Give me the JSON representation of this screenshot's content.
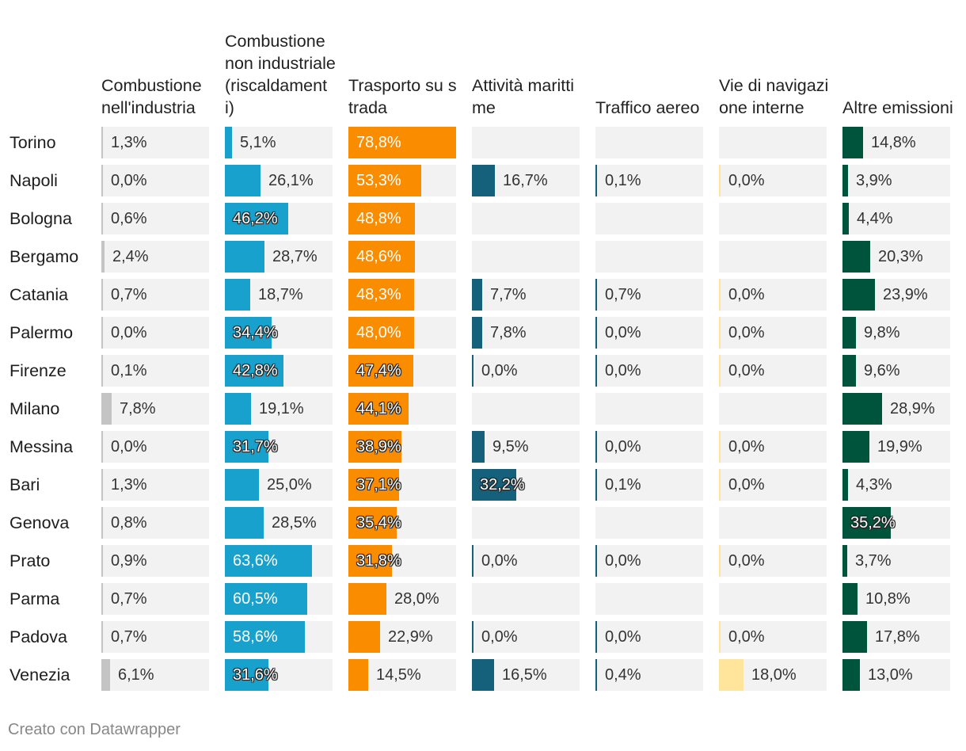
{
  "chart_data": {
    "type": "table",
    "title": "",
    "xlabel": "",
    "ylabel": "",
    "xlim": [
      0,
      78.8
    ],
    "columns": [
      {
        "key": "c1",
        "header": "Combustione nell'industria",
        "color": "#c4c4c4"
      },
      {
        "key": "c2",
        "header": "Combustione non industriale (riscaldamenti)",
        "color": "#18a1cd"
      },
      {
        "key": "c3",
        "header": "Trasporto su strada",
        "color": "#fa8c00"
      },
      {
        "key": "c4",
        "header": "Attività marittime",
        "color": "#15607a"
      },
      {
        "key": "c5",
        "header": "Traffico aereo",
        "color": "#15607a"
      },
      {
        "key": "c6",
        "header": "Vie di navigazione interne",
        "color": "#ffe59c"
      },
      {
        "key": "c7",
        "header": "Altre emissioni",
        "color": "#00543c"
      }
    ],
    "rows": [
      {
        "city": "Torino",
        "values": [
          1.3,
          5.1,
          78.8,
          null,
          null,
          null,
          14.8
        ]
      },
      {
        "city": "Napoli",
        "values": [
          0.0,
          26.1,
          53.3,
          16.7,
          0.1,
          0.0,
          3.9
        ]
      },
      {
        "city": "Bologna",
        "values": [
          0.6,
          46.2,
          48.8,
          null,
          null,
          null,
          4.4
        ]
      },
      {
        "city": "Bergamo",
        "values": [
          2.4,
          28.7,
          48.6,
          null,
          null,
          null,
          20.3
        ]
      },
      {
        "city": "Catania",
        "values": [
          0.7,
          18.7,
          48.3,
          7.7,
          0.7,
          0.0,
          23.9
        ]
      },
      {
        "city": "Palermo",
        "values": [
          0.0,
          34.4,
          48.0,
          7.8,
          0.0,
          0.0,
          9.8
        ]
      },
      {
        "city": "Firenze",
        "values": [
          0.1,
          42.8,
          47.4,
          0.0,
          0.0,
          0.0,
          9.6
        ]
      },
      {
        "city": "Milano",
        "values": [
          7.8,
          19.1,
          44.1,
          null,
          null,
          null,
          28.9
        ]
      },
      {
        "city": "Messina",
        "values": [
          0.0,
          31.7,
          38.9,
          9.5,
          0.0,
          0.0,
          19.9
        ]
      },
      {
        "city": "Bari",
        "values": [
          1.3,
          25.0,
          37.1,
          32.2,
          0.1,
          0.0,
          4.3
        ]
      },
      {
        "city": "Genova",
        "values": [
          0.8,
          28.5,
          35.4,
          null,
          null,
          null,
          35.2
        ]
      },
      {
        "city": "Prato",
        "values": [
          0.9,
          63.6,
          31.8,
          0.0,
          0.0,
          0.0,
          3.7
        ]
      },
      {
        "city": "Parma",
        "values": [
          0.7,
          60.5,
          28.0,
          null,
          null,
          null,
          10.8
        ]
      },
      {
        "city": "Padova",
        "values": [
          0.7,
          58.6,
          22.9,
          0.0,
          0.0,
          0.0,
          17.8
        ]
      },
      {
        "city": "Venezia",
        "values": [
          6.1,
          31.6,
          14.5,
          16.5,
          0.4,
          18.0,
          13.0
        ]
      }
    ],
    "labels": [
      [
        "1,3%",
        "5,1%",
        "78,8%",
        "",
        "",
        "",
        "14,8%"
      ],
      [
        "0,0%",
        "26,1%",
        "53,3%",
        "16,7%",
        "0,1%",
        "0,0%",
        "3,9%"
      ],
      [
        "0,6%",
        "46,2%",
        "48,8%",
        "",
        "",
        "",
        "4,4%"
      ],
      [
        "2,4%",
        "28,7%",
        "48,6%",
        "",
        "",
        "",
        "20,3%"
      ],
      [
        "0,7%",
        "18,7%",
        "48,3%",
        "7,7%",
        "0,7%",
        "0,0%",
        "23,9%"
      ],
      [
        "0,0%",
        "34,4%",
        "48,0%",
        "7,8%",
        "0,0%",
        "0,0%",
        "9,8%"
      ],
      [
        "0,1%",
        "42,8%",
        "47,4%",
        "0,0%",
        "0,0%",
        "0,0%",
        "9,6%"
      ],
      [
        "7,8%",
        "19,1%",
        "44,1%",
        "",
        "",
        "",
        "28,9%"
      ],
      [
        "0,0%",
        "31,7%",
        "38,9%",
        "9,5%",
        "0,0%",
        "0,0%",
        "19,9%"
      ],
      [
        "1,3%",
        "25,0%",
        "37,1%",
        "32,2%",
        "0,1%",
        "0,0%",
        "4,3%"
      ],
      [
        "0,8%",
        "28,5%",
        "35,4%",
        "",
        "",
        "",
        "35,2%"
      ],
      [
        "0,9%",
        "63,6%",
        "31,8%",
        "0,0%",
        "0,0%",
        "0,0%",
        "3,7%"
      ],
      [
        "0,7%",
        "60,5%",
        "28,0%",
        "",
        "",
        "",
        "10,8%"
      ],
      [
        "0,7%",
        "58,6%",
        "22,9%",
        "0,0%",
        "0,0%",
        "0,0%",
        "17,8%"
      ],
      [
        "6,1%",
        "31,6%",
        "14,5%",
        "16,5%",
        "0,4%",
        "18,0%",
        "13,0%"
      ]
    ],
    "label_style": [
      [
        "out",
        "out",
        "white",
        "",
        "",
        "",
        "out"
      ],
      [
        "out",
        "out",
        "white",
        "out",
        "out",
        "out",
        "out"
      ],
      [
        "out",
        "stroke",
        "white",
        "",
        "",
        "",
        "out"
      ],
      [
        "out",
        "out",
        "white",
        "",
        "",
        "",
        "out"
      ],
      [
        "out",
        "out",
        "white",
        "out",
        "out",
        "out",
        "out"
      ],
      [
        "out",
        "stroke",
        "white",
        "out",
        "out",
        "out",
        "out"
      ],
      [
        "out",
        "stroke",
        "stroke",
        "out",
        "out",
        "out",
        "out"
      ],
      [
        "out",
        "out",
        "stroke",
        "",
        "",
        "",
        "out"
      ],
      [
        "out",
        "stroke",
        "stroke",
        "out",
        "out",
        "out",
        "out"
      ],
      [
        "out",
        "out",
        "stroke",
        "stroke",
        "out",
        "out",
        "out"
      ],
      [
        "out",
        "out",
        "stroke",
        "",
        "",
        "",
        "stroke"
      ],
      [
        "out",
        "white",
        "stroke",
        "out",
        "out",
        "out",
        "out"
      ],
      [
        "out",
        "white",
        "out",
        "",
        "",
        "",
        "out"
      ],
      [
        "out",
        "white",
        "out",
        "out",
        "out",
        "out",
        "out"
      ],
      [
        "out",
        "stroke",
        "out",
        "out",
        "out",
        "out",
        "out"
      ]
    ]
  },
  "credit": "Creato con Datawrapper"
}
